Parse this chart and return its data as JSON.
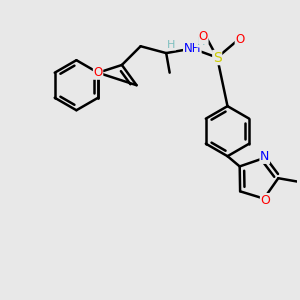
{
  "background_color": "#e8e8e8",
  "atom_colors": {
    "C": "#000000",
    "H": "#7fbfbf",
    "N": "#0000ff",
    "O": "#ff0000",
    "S": "#cccc00"
  },
  "bond_color": "#000000",
  "bond_width": 1.8,
  "figsize": [
    3.0,
    3.0
  ],
  "dpi": 100
}
